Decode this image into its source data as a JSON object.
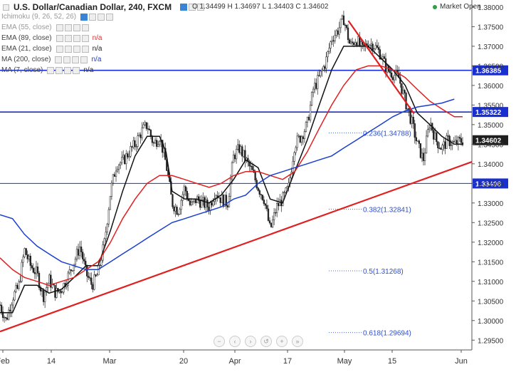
{
  "header": {
    "title": "U.S. Dollar/Canadian Dollar, 240, FXCM",
    "open": "O 1.34499",
    "high": "H 1.34697",
    "low": "L 1.34403",
    "close": "C 1.34602",
    "market_status": "Market Open"
  },
  "indicators": [
    {
      "label": "Ichimoku (9, 26, 52, 26)",
      "value": "",
      "color": "#aaaaaa"
    },
    {
      "label": "EMA (55, close)",
      "value": "",
      "color": "#aaaaaa"
    },
    {
      "label": "EMA (89, close)",
      "value": "n/a",
      "color": "#e03030"
    },
    {
      "label": "EMA (21, close)",
      "value": "n/a",
      "color": "#222222"
    },
    {
      "label": "MA (200, close)",
      "value": "n/a",
      "color": "#1a3fd0"
    },
    {
      "label": "MA (7, close)",
      "value": "n/a",
      "color": "#333333"
    }
  ],
  "nav_icons": [
    "minus-icon",
    "chevron-left-icon",
    "chevron-right-icon",
    "reset-icon",
    "plus-icon",
    "chevron-end-icon"
  ],
  "chart_data": {
    "type": "candlestick",
    "timeframe": "240",
    "y_ticks": [
      "1.38000",
      "1.37500",
      "1.37000",
      "1.36500",
      "1.36000",
      "1.35500",
      "1.35000",
      "1.34500",
      "1.34000",
      "1.33500",
      "1.33000",
      "1.32500",
      "1.32000",
      "1.31500",
      "1.31000",
      "1.30500",
      "1.30000",
      "1.29500"
    ],
    "ylim": [
      1.2925,
      1.3818
    ],
    "x_ticks": [
      "Feb",
      "14",
      "Mar",
      "20",
      "Apr",
      "17",
      "May",
      "15",
      "Jun"
    ],
    "price_lines": [
      {
        "value": 1.36385,
        "label": "1.36385"
      },
      {
        "value": 1.35322,
        "label": "1.35322"
      },
      {
        "value": 1.33498,
        "label": "1.33498"
      }
    ],
    "last_price": {
      "value": 1.34602,
      "label": "1.34602"
    },
    "fibonacci": [
      {
        "ratio": "0.236",
        "value": 1.34788,
        "label": "0.236(1.34788)"
      },
      {
        "ratio": "0.382",
        "value": 1.32841,
        "label": "0.382(1.32841)"
      },
      {
        "ratio": "0.5",
        "value": 1.31268,
        "label": "0.5(1.31268)"
      },
      {
        "ratio": "0.618",
        "value": 1.29694,
        "label": "0.618(1.29694)"
      }
    ],
    "trendlines": [
      {
        "name": "support",
        "points": [
          [
            0,
            1.2972
          ],
          [
            1,
            1.3405
          ]
        ],
        "color": "#e02020"
      },
      {
        "name": "resistance",
        "points": [
          [
            0.753,
            1.3765
          ],
          [
            0.895,
            1.3528
          ]
        ],
        "color": "#e02020"
      }
    ],
    "price_path": [
      [
        0.0,
        1.304
      ],
      [
        0.013,
        1.3
      ],
      [
        0.027,
        1.306
      ],
      [
        0.04,
        1.3085
      ],
      [
        0.053,
        1.318
      ],
      [
        0.066,
        1.314
      ],
      [
        0.08,
        1.312
      ],
      [
        0.093,
        1.306
      ],
      [
        0.106,
        1.3105
      ],
      [
        0.12,
        1.307
      ],
      [
        0.133,
        1.308
      ],
      [
        0.146,
        1.311
      ],
      [
        0.16,
        1.315
      ],
      [
        0.173,
        1.319
      ],
      [
        0.186,
        1.312
      ],
      [
        0.199,
        1.309
      ],
      [
        0.212,
        1.312
      ],
      [
        0.226,
        1.32
      ],
      [
        0.239,
        1.333
      ],
      [
        0.252,
        1.34
      ],
      [
        0.265,
        1.3405
      ],
      [
        0.279,
        1.343
      ],
      [
        0.292,
        1.345
      ],
      [
        0.305,
        1.348
      ],
      [
        0.318,
        1.35
      ],
      [
        0.332,
        1.345
      ],
      [
        0.345,
        1.347
      ],
      [
        0.359,
        1.34
      ],
      [
        0.372,
        1.33
      ],
      [
        0.385,
        1.328
      ],
      [
        0.399,
        1.334
      ],
      [
        0.412,
        1.329
      ],
      [
        0.425,
        1.331
      ],
      [
        0.438,
        1.33
      ],
      [
        0.452,
        1.329
      ],
      [
        0.465,
        1.333
      ],
      [
        0.478,
        1.331
      ],
      [
        0.492,
        1.33
      ],
      [
        0.505,
        1.342
      ],
      [
        0.518,
        1.344
      ],
      [
        0.531,
        1.341
      ],
      [
        0.545,
        1.338
      ],
      [
        0.558,
        1.334
      ],
      [
        0.571,
        1.331
      ],
      [
        0.584,
        1.323
      ],
      [
        0.598,
        1.329
      ],
      [
        0.611,
        1.331
      ],
      [
        0.624,
        1.334
      ],
      [
        0.637,
        1.345
      ],
      [
        0.651,
        1.347
      ],
      [
        0.664,
        1.35
      ],
      [
        0.677,
        1.359
      ],
      [
        0.69,
        1.362
      ],
      [
        0.704,
        1.366
      ],
      [
        0.717,
        1.372
      ],
      [
        0.73,
        1.374
      ],
      [
        0.743,
        1.377
      ],
      [
        0.757,
        1.37
      ],
      [
        0.77,
        1.372
      ],
      [
        0.783,
        1.369
      ],
      [
        0.796,
        1.371
      ],
      [
        0.81,
        1.37
      ],
      [
        0.823,
        1.368
      ],
      [
        0.836,
        1.364
      ],
      [
        0.849,
        1.363
      ],
      [
        0.862,
        1.362
      ],
      [
        0.876,
        1.356
      ],
      [
        0.889,
        1.351
      ],
      [
        0.902,
        1.345
      ],
      [
        0.915,
        1.341
      ],
      [
        0.929,
        1.351
      ],
      [
        0.942,
        1.346
      ],
      [
        0.955,
        1.344
      ],
      [
        0.968,
        1.346
      ],
      [
        0.982,
        1.345
      ],
      [
        1.0,
        1.346
      ]
    ],
    "ma_lines": [
      {
        "name": "EMA (21, close)",
        "color": "#111111",
        "points": [
          [
            0.0,
            1.302
          ],
          [
            0.027,
            1.302
          ],
          [
            0.053,
            1.309
          ],
          [
            0.08,
            1.309
          ],
          [
            0.106,
            1.307
          ],
          [
            0.133,
            1.308
          ],
          [
            0.16,
            1.311
          ],
          [
            0.186,
            1.314
          ],
          [
            0.212,
            1.314
          ],
          [
            0.239,
            1.323
          ],
          [
            0.265,
            1.333
          ],
          [
            0.292,
            1.342
          ],
          [
            0.318,
            1.347
          ],
          [
            0.345,
            1.347
          ],
          [
            0.359,
            1.343
          ],
          [
            0.372,
            1.333
          ],
          [
            0.399,
            1.331
          ],
          [
            0.425,
            1.331
          ],
          [
            0.452,
            1.33
          ],
          [
            0.478,
            1.332
          ],
          [
            0.505,
            1.336
          ],
          [
            0.531,
            1.341
          ],
          [
            0.558,
            1.339
          ],
          [
            0.584,
            1.331
          ],
          [
            0.611,
            1.33
          ],
          [
            0.637,
            1.338
          ],
          [
            0.664,
            1.346
          ],
          [
            0.69,
            1.355
          ],
          [
            0.717,
            1.364
          ],
          [
            0.743,
            1.37
          ],
          [
            0.77,
            1.37
          ],
          [
            0.796,
            1.37
          ],
          [
            0.823,
            1.367
          ],
          [
            0.849,
            1.364
          ],
          [
            0.876,
            1.36
          ],
          [
            0.902,
            1.353
          ],
          [
            0.929,
            1.35
          ],
          [
            0.955,
            1.347
          ],
          [
            0.982,
            1.345
          ],
          [
            1.0,
            1.345
          ]
        ]
      },
      {
        "name": "EMA (89, close)",
        "color": "#e02020",
        "points": [
          [
            0.0,
            1.316
          ],
          [
            0.027,
            1.313
          ],
          [
            0.053,
            1.311
          ],
          [
            0.08,
            1.31
          ],
          [
            0.106,
            1.309
          ],
          [
            0.133,
            1.31
          ],
          [
            0.16,
            1.311
          ],
          [
            0.186,
            1.313
          ],
          [
            0.212,
            1.315
          ],
          [
            0.239,
            1.32
          ],
          [
            0.265,
            1.326
          ],
          [
            0.292,
            1.331
          ],
          [
            0.318,
            1.335
          ],
          [
            0.345,
            1.337
          ],
          [
            0.372,
            1.337
          ],
          [
            0.399,
            1.336
          ],
          [
            0.425,
            1.335
          ],
          [
            0.452,
            1.334
          ],
          [
            0.478,
            1.335
          ],
          [
            0.505,
            1.337
          ],
          [
            0.531,
            1.338
          ],
          [
            0.558,
            1.338
          ],
          [
            0.584,
            1.337
          ],
          [
            0.611,
            1.336
          ],
          [
            0.637,
            1.338
          ],
          [
            0.664,
            1.343
          ],
          [
            0.69,
            1.349
          ],
          [
            0.717,
            1.355
          ],
          [
            0.743,
            1.36
          ],
          [
            0.77,
            1.364
          ],
          [
            0.796,
            1.365
          ],
          [
            0.823,
            1.365
          ],
          [
            0.849,
            1.364
          ],
          [
            0.876,
            1.362
          ],
          [
            0.902,
            1.359
          ],
          [
            0.929,
            1.356
          ],
          [
            0.955,
            1.354
          ],
          [
            0.982,
            1.352
          ],
          [
            1.0,
            1.352
          ]
        ]
      },
      {
        "name": "MA (200, close)",
        "color": "#1a3fd0",
        "points": [
          [
            0.0,
            1.327
          ],
          [
            0.027,
            1.326
          ],
          [
            0.053,
            1.322
          ],
          [
            0.08,
            1.319
          ],
          [
            0.106,
            1.317
          ],
          [
            0.133,
            1.315
          ],
          [
            0.16,
            1.314
          ],
          [
            0.186,
            1.313
          ],
          [
            0.212,
            1.313
          ],
          [
            0.239,
            1.315
          ],
          [
            0.265,
            1.317
          ],
          [
            0.292,
            1.319
          ],
          [
            0.318,
            1.321
          ],
          [
            0.345,
            1.323
          ],
          [
            0.372,
            1.325
          ],
          [
            0.399,
            1.326
          ],
          [
            0.425,
            1.327
          ],
          [
            0.452,
            1.328
          ],
          [
            0.478,
            1.329
          ],
          [
            0.505,
            1.331
          ],
          [
            0.531,
            1.332
          ],
          [
            0.558,
            1.335
          ],
          [
            0.584,
            1.337
          ],
          [
            0.611,
            1.338
          ],
          [
            0.637,
            1.339
          ],
          [
            0.664,
            1.34
          ],
          [
            0.69,
            1.341
          ],
          [
            0.717,
            1.342
          ],
          [
            0.743,
            1.344
          ],
          [
            0.77,
            1.346
          ],
          [
            0.796,
            1.348
          ],
          [
            0.823,
            1.35
          ],
          [
            0.849,
            1.352
          ],
          [
            0.876,
            1.3535
          ],
          [
            0.902,
            1.3545
          ],
          [
            0.929,
            1.355
          ],
          [
            0.955,
            1.3555
          ],
          [
            0.982,
            1.3565
          ]
        ]
      }
    ]
  }
}
